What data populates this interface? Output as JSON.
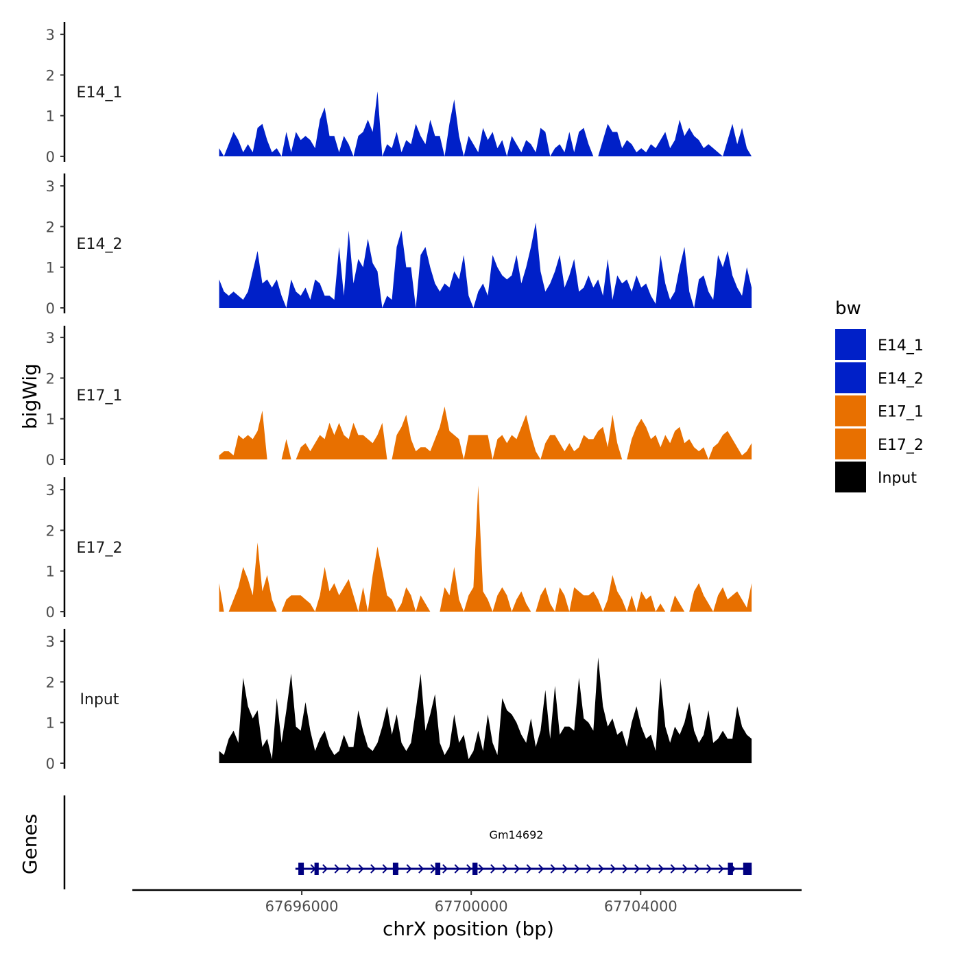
{
  "chart_data": {
    "type": "area",
    "ylabel": "bigWig",
    "xlabel": "chrX position (bp)",
    "x_ticks": [
      67696000,
      67700000,
      67704000
    ],
    "x_tick_labels": [
      "67696000",
      "67700000",
      "67704000"
    ],
    "xlim": [
      67692000,
      67707800
    ],
    "data_xlim": [
      67694050,
      67706620
    ],
    "ylim": [
      0,
      3.3
    ],
    "y_ticks": [
      0,
      1,
      2,
      3
    ],
    "y_tick_labels": [
      "0",
      "1",
      "2",
      "3"
    ],
    "tracks": [
      {
        "name": "E14_1",
        "label": "E14_1",
        "color": "#0020C8",
        "values": [
          0.2,
          0.0,
          0.3,
          0.6,
          0.4,
          0.1,
          0.3,
          0.1,
          0.7,
          0.8,
          0.4,
          0.1,
          0.2,
          0.0,
          0.6,
          0.1,
          0.6,
          0.4,
          0.5,
          0.4,
          0.2,
          0.9,
          1.2,
          0.5,
          0.5,
          0.1,
          0.5,
          0.3,
          0.0,
          0.5,
          0.6,
          0.9,
          0.6,
          1.6,
          0.0,
          0.3,
          0.2,
          0.6,
          0.1,
          0.4,
          0.3,
          0.8,
          0.5,
          0.3,
          0.9,
          0.5,
          0.5,
          0.0,
          0.8,
          1.4,
          0.5,
          0.0,
          0.5,
          0.3,
          0.1,
          0.7,
          0.4,
          0.6,
          0.2,
          0.4,
          0.0,
          0.5,
          0.3,
          0.1,
          0.4,
          0.3,
          0.1,
          0.7,
          0.6,
          0.0,
          0.2,
          0.3,
          0.1,
          0.6,
          0.1,
          0.6,
          0.7,
          0.3,
          0.0,
          0.0,
          0.4,
          0.8,
          0.6,
          0.6,
          0.2,
          0.4,
          0.3,
          0.1,
          0.2,
          0.1,
          0.3,
          0.2,
          0.4,
          0.6,
          0.2,
          0.4,
          0.9,
          0.5,
          0.7,
          0.5,
          0.4,
          0.2,
          0.3,
          0.2,
          0.1,
          0.0,
          0.4,
          0.8,
          0.3,
          0.7,
          0.2,
          0.0
        ]
      },
      {
        "name": "E14_2",
        "label": "E14_2",
        "color": "#0020C8",
        "values": [
          0.7,
          0.4,
          0.3,
          0.4,
          0.3,
          0.2,
          0.4,
          0.9,
          1.4,
          0.6,
          0.7,
          0.5,
          0.7,
          0.3,
          0.0,
          0.7,
          0.4,
          0.3,
          0.5,
          0.2,
          0.7,
          0.6,
          0.3,
          0.3,
          0.2,
          1.5,
          0.3,
          1.9,
          0.6,
          1.2,
          1.0,
          1.7,
          1.1,
          0.9,
          0.0,
          0.3,
          0.2,
          1.5,
          1.9,
          1.0,
          1.0,
          0.0,
          1.3,
          1.5,
          1.0,
          0.6,
          0.4,
          0.6,
          0.5,
          0.9,
          0.7,
          1.3,
          0.3,
          0.0,
          0.4,
          0.6,
          0.3,
          1.3,
          1.0,
          0.8,
          0.7,
          0.8,
          1.3,
          0.6,
          1.0,
          1.5,
          2.1,
          0.9,
          0.4,
          0.6,
          0.9,
          1.3,
          0.5,
          0.8,
          1.2,
          0.4,
          0.5,
          0.8,
          0.5,
          0.7,
          0.3,
          1.2,
          0.2,
          0.8,
          0.6,
          0.7,
          0.4,
          0.8,
          0.5,
          0.6,
          0.3,
          0.1,
          1.3,
          0.6,
          0.2,
          0.4,
          1.0,
          1.5,
          0.4,
          0.0,
          0.7,
          0.8,
          0.4,
          0.2,
          1.3,
          1.0,
          1.4,
          0.8,
          0.5,
          0.3,
          1.0,
          0.5
        ]
      },
      {
        "name": "E17_1",
        "label": "E17_1",
        "color": "#E87000",
        "values": [
          0.1,
          0.2,
          0.2,
          0.1,
          0.6,
          0.5,
          0.6,
          0.5,
          0.7,
          1.2,
          0.0,
          0.0,
          0.0,
          0.0,
          0.5,
          0.0,
          0.0,
          0.3,
          0.4,
          0.2,
          0.4,
          0.6,
          0.5,
          0.9,
          0.6,
          0.9,
          0.6,
          0.5,
          0.9,
          0.6,
          0.6,
          0.5,
          0.4,
          0.6,
          0.9,
          0.0,
          0.0,
          0.6,
          0.8,
          1.1,
          0.5,
          0.2,
          0.3,
          0.3,
          0.2,
          0.5,
          0.8,
          1.3,
          0.7,
          0.6,
          0.5,
          0.0,
          0.6,
          0.6,
          0.6,
          0.6,
          0.6,
          0.0,
          0.5,
          0.6,
          0.4,
          0.6,
          0.5,
          0.8,
          1.1,
          0.6,
          0.2,
          0.0,
          0.4,
          0.6,
          0.6,
          0.4,
          0.2,
          0.4,
          0.2,
          0.3,
          0.6,
          0.5,
          0.5,
          0.7,
          0.8,
          0.3,
          1.1,
          0.4,
          0.0,
          0.0,
          0.5,
          0.8,
          1.0,
          0.8,
          0.5,
          0.6,
          0.3,
          0.6,
          0.4,
          0.7,
          0.8,
          0.4,
          0.5,
          0.3,
          0.2,
          0.3,
          0.0,
          0.3,
          0.4,
          0.6,
          0.7,
          0.5,
          0.3,
          0.1,
          0.2,
          0.4
        ]
      },
      {
        "name": "E17_2",
        "label": "E17_2",
        "color": "#E87000",
        "values": [
          0.7,
          0.0,
          0.0,
          0.3,
          0.6,
          1.1,
          0.8,
          0.4,
          1.7,
          0.5,
          0.9,
          0.3,
          0.0,
          0.0,
          0.3,
          0.4,
          0.4,
          0.4,
          0.3,
          0.2,
          0.0,
          0.4,
          1.1,
          0.5,
          0.7,
          0.4,
          0.6,
          0.8,
          0.4,
          0.0,
          0.6,
          0.0,
          0.9,
          1.6,
          1.0,
          0.4,
          0.3,
          0.0,
          0.2,
          0.6,
          0.4,
          0.0,
          0.4,
          0.2,
          0.0,
          0.0,
          0.0,
          0.6,
          0.4,
          1.1,
          0.3,
          0.0,
          0.4,
          0.6,
          3.1,
          0.5,
          0.3,
          0.0,
          0.4,
          0.6,
          0.4,
          0.0,
          0.3,
          0.5,
          0.2,
          0.0,
          0.0,
          0.4,
          0.6,
          0.2,
          0.0,
          0.6,
          0.4,
          0.0,
          0.6,
          0.5,
          0.4,
          0.4,
          0.5,
          0.3,
          0.0,
          0.3,
          0.9,
          0.5,
          0.3,
          0.0,
          0.4,
          0.0,
          0.5,
          0.3,
          0.4,
          0.0,
          0.2,
          0.0,
          0.0,
          0.4,
          0.2,
          0.0,
          0.0,
          0.5,
          0.7,
          0.4,
          0.2,
          0.0,
          0.4,
          0.6,
          0.3,
          0.4,
          0.5,
          0.3,
          0.1,
          0.7
        ]
      },
      {
        "name": "Input",
        "label": "Input",
        "color": "#000000",
        "values": [
          0.3,
          0.2,
          0.6,
          0.8,
          0.5,
          2.1,
          1.4,
          1.1,
          1.3,
          0.4,
          0.6,
          0.1,
          1.6,
          0.5,
          1.3,
          2.2,
          0.9,
          0.8,
          1.5,
          0.8,
          0.3,
          0.6,
          0.8,
          0.4,
          0.2,
          0.3,
          0.7,
          0.4,
          0.4,
          1.3,
          0.8,
          0.4,
          0.3,
          0.5,
          0.9,
          1.4,
          0.7,
          1.2,
          0.5,
          0.3,
          0.5,
          1.3,
          2.2,
          0.8,
          1.2,
          1.7,
          0.5,
          0.2,
          0.4,
          1.2,
          0.5,
          0.7,
          0.1,
          0.3,
          0.8,
          0.3,
          1.2,
          0.5,
          0.2,
          1.6,
          1.3,
          1.2,
          1.0,
          0.7,
          0.5,
          1.1,
          0.4,
          0.8,
          1.8,
          0.6,
          1.9,
          0.7,
          0.9,
          0.9,
          0.8,
          2.1,
          1.1,
          1.0,
          0.8,
          2.6,
          1.4,
          0.9,
          1.1,
          0.7,
          0.8,
          0.4,
          1.0,
          1.4,
          0.9,
          0.6,
          0.7,
          0.3,
          2.1,
          0.9,
          0.5,
          0.9,
          0.7,
          1.0,
          1.5,
          0.8,
          0.5,
          0.7,
          1.3,
          0.5,
          0.6,
          0.8,
          0.6,
          0.6,
          1.4,
          0.9,
          0.7,
          0.6
        ]
      }
    ],
    "legend": {
      "title": "bw",
      "items": [
        {
          "label": "E14_1",
          "color": "#0020C8"
        },
        {
          "label": "E14_2",
          "color": "#0020C8"
        },
        {
          "label": "E17_1",
          "color": "#E87000"
        },
        {
          "label": "E17_2",
          "color": "#E87000"
        },
        {
          "label": "Input",
          "color": "#000000"
        }
      ]
    },
    "genes_track": {
      "title": "Genes",
      "gene_name": "Gm14692",
      "color": "#000080",
      "start": 67695850,
      "end": 67706620,
      "strand": "+",
      "exons": [
        [
          67695920,
          67696050
        ],
        [
          67696300,
          67696400
        ],
        [
          67698150,
          67698280
        ],
        [
          67699150,
          67699270
        ],
        [
          67700030,
          67700150
        ],
        [
          67706060,
          67706180
        ],
        [
          67706420,
          67706620
        ]
      ]
    }
  }
}
